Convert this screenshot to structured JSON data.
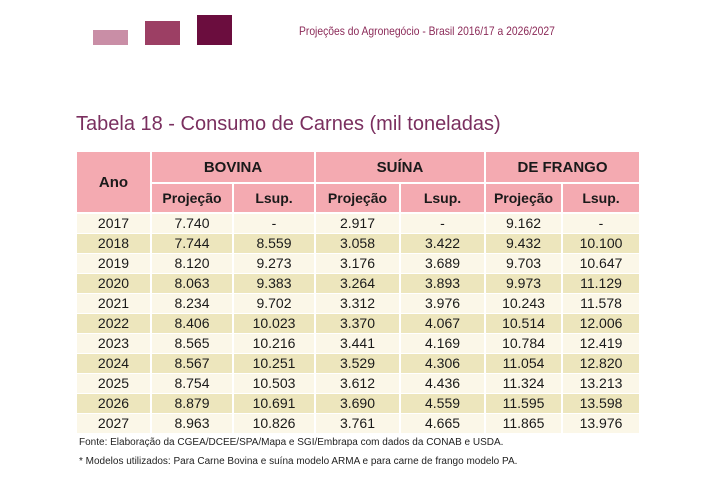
{
  "header": {
    "title": "Projeções do Agronegócio - Brasil 2016/17 a 2026/2027",
    "colors": [
      "#c98ea6",
      "#9c3f64",
      "#6b0d3e"
    ]
  },
  "table_title": "Tabela 18 - Consumo de Carnes (mil toneladas)",
  "table": {
    "year_header": "Ano",
    "groups": [
      "BOVINA",
      "SUÍNA",
      "DE FRANGO"
    ],
    "subheaders": [
      "Projeção",
      "Lsup.",
      "Projeção",
      "Lsup.",
      "Projeção",
      "Lsup."
    ],
    "rows": [
      [
        "2017",
        "7.740",
        "-",
        "2.917",
        "-",
        "9.162",
        "-"
      ],
      [
        "2018",
        "7.744",
        "8.559",
        "3.058",
        "3.422",
        "9.432",
        "10.100"
      ],
      [
        "2019",
        "8.120",
        "9.273",
        "3.176",
        "3.689",
        "9.703",
        "10.647"
      ],
      [
        "2020",
        "8.063",
        "9.383",
        "3.264",
        "3.893",
        "9.973",
        "11.129"
      ],
      [
        "2021",
        "8.234",
        "9.702",
        "3.312",
        "3.976",
        "10.243",
        "11.578"
      ],
      [
        "2022",
        "8.406",
        "10.023",
        "3.370",
        "4.067",
        "10.514",
        "12.006"
      ],
      [
        "2023",
        "8.565",
        "10.216",
        "3.441",
        "4.169",
        "10.784",
        "12.419"
      ],
      [
        "2024",
        "8.567",
        "10.251",
        "3.529",
        "4.306",
        "11.054",
        "12.820"
      ],
      [
        "2025",
        "8.754",
        "10.503",
        "3.612",
        "4.436",
        "11.324",
        "13.213"
      ],
      [
        "2026",
        "8.879",
        "10.691",
        "3.690",
        "4.559",
        "11.595",
        "13.598"
      ],
      [
        "2027",
        "8.963",
        "10.826",
        "3.761",
        "4.665",
        "11.865",
        "13.976"
      ]
    ]
  },
  "notes": {
    "source": "Fonte: Elaboração da CGEA/DCEE/SPA/Mapa e SGI/Embrapa com dados da CONAB e USDA.",
    "models": "* Modelos utilizados: Para Carne Bovina e suína modelo ARMA e para carne de frango modelo PA."
  }
}
